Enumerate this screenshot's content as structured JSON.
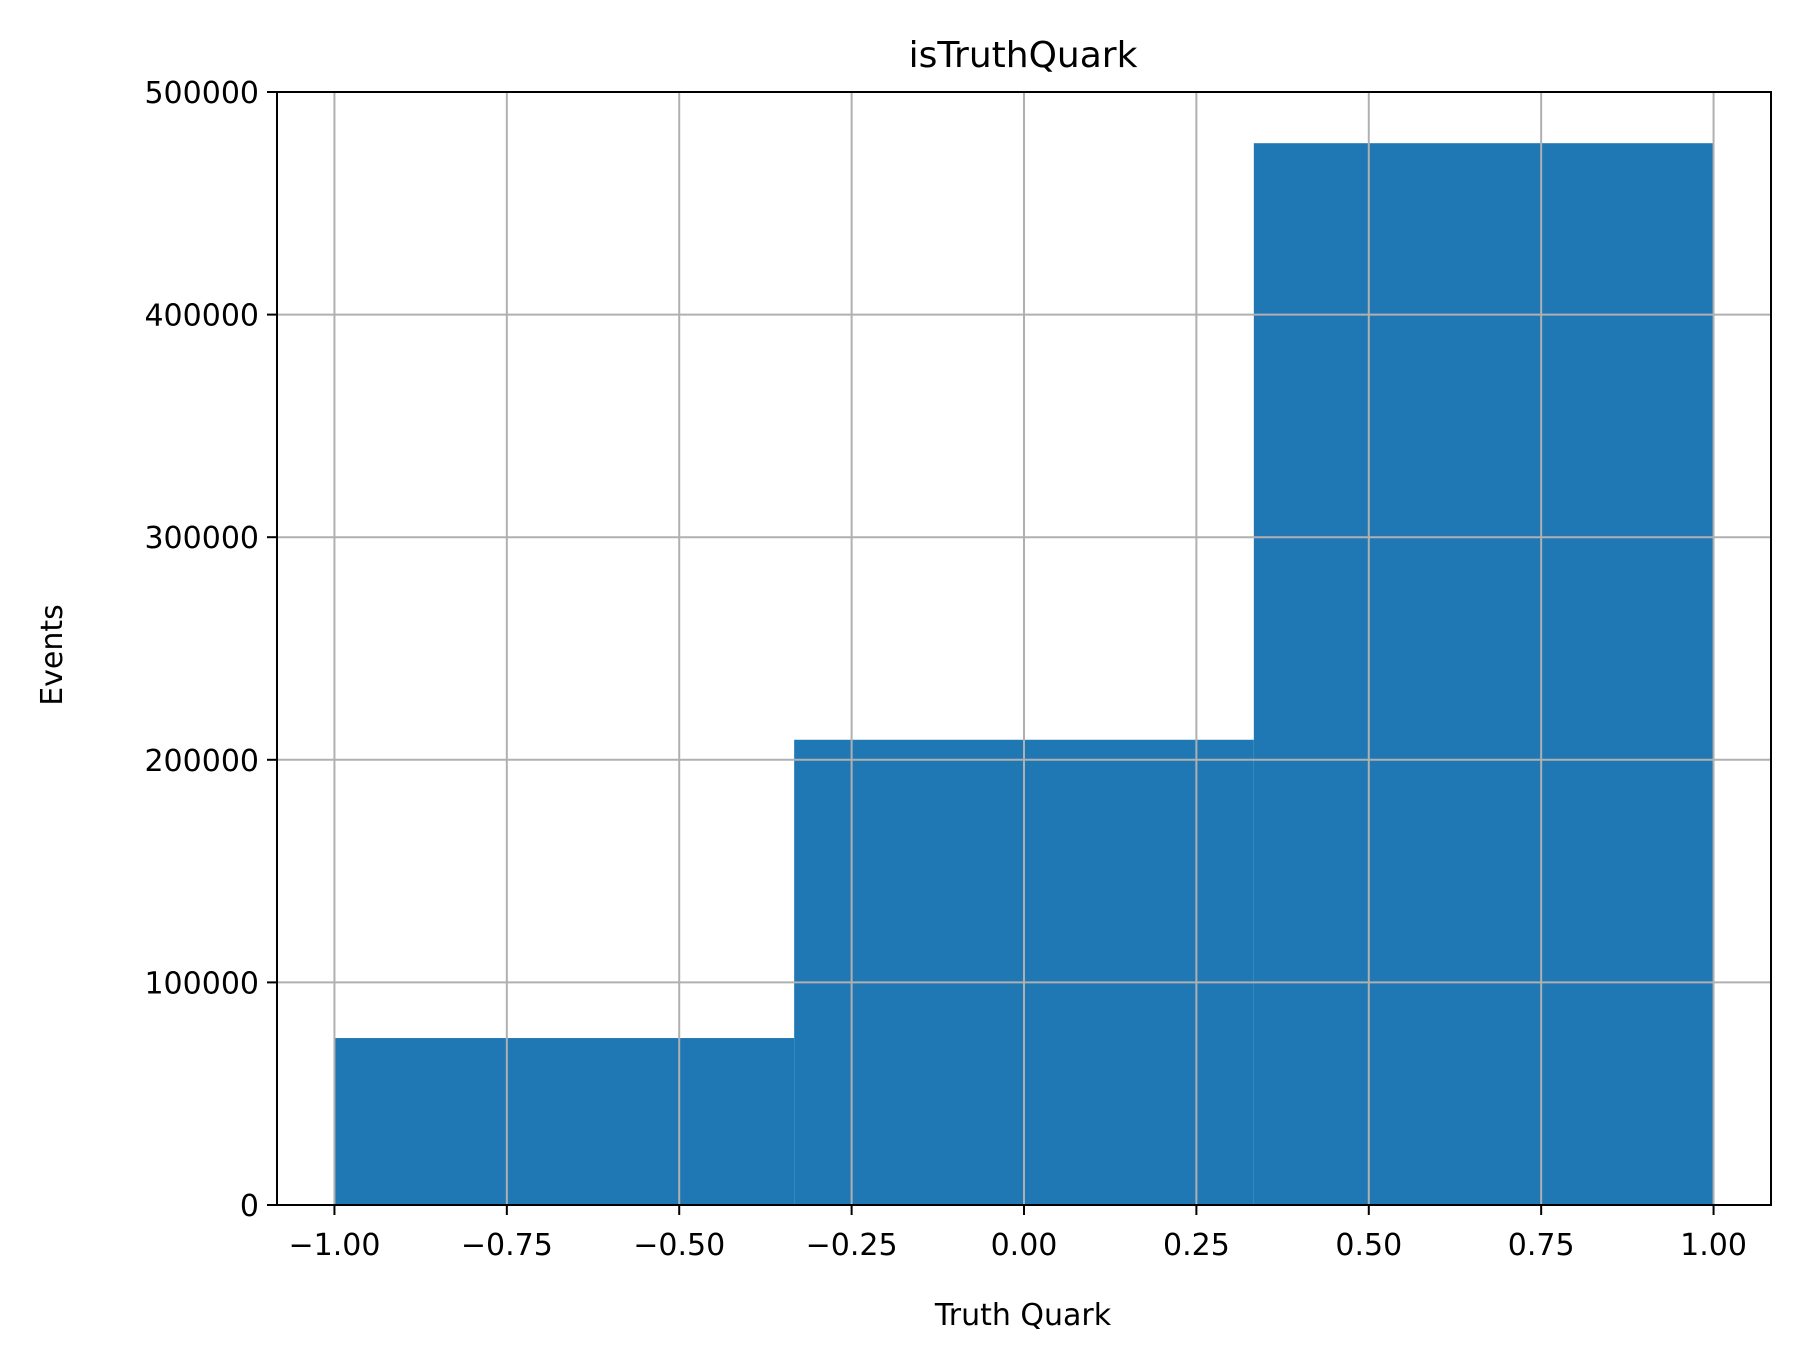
{
  "chart_data": {
    "type": "bar",
    "title": "isTruthQuark",
    "xlabel": "Truth Quark",
    "ylabel": "Events",
    "xlim": [
      -1.0833,
      1.0833
    ],
    "ylim": [
      0,
      500000
    ],
    "xticks": [
      -1.0,
      -0.75,
      -0.5,
      -0.25,
      0.0,
      0.25,
      0.5,
      0.75,
      1.0
    ],
    "xtick_labels": [
      "−1.00",
      "−0.75",
      "−0.50",
      "−0.25",
      "0.00",
      "0.25",
      "0.50",
      "0.75",
      "1.00"
    ],
    "yticks": [
      0,
      100000,
      200000,
      300000,
      400000,
      500000
    ],
    "ytick_labels": [
      "0",
      "100000",
      "200000",
      "300000",
      "400000",
      "500000"
    ],
    "bins": [
      {
        "x0": -1.0,
        "x1": -0.3333,
        "value": 75000
      },
      {
        "x0": -0.3333,
        "x1": 0.3333,
        "value": 209000
      },
      {
        "x0": 0.3333,
        "x1": 1.0,
        "value": 477000
      }
    ],
    "grid": true,
    "bar_color": "#1f77b4",
    "grid_color": "#b0b0b0"
  }
}
